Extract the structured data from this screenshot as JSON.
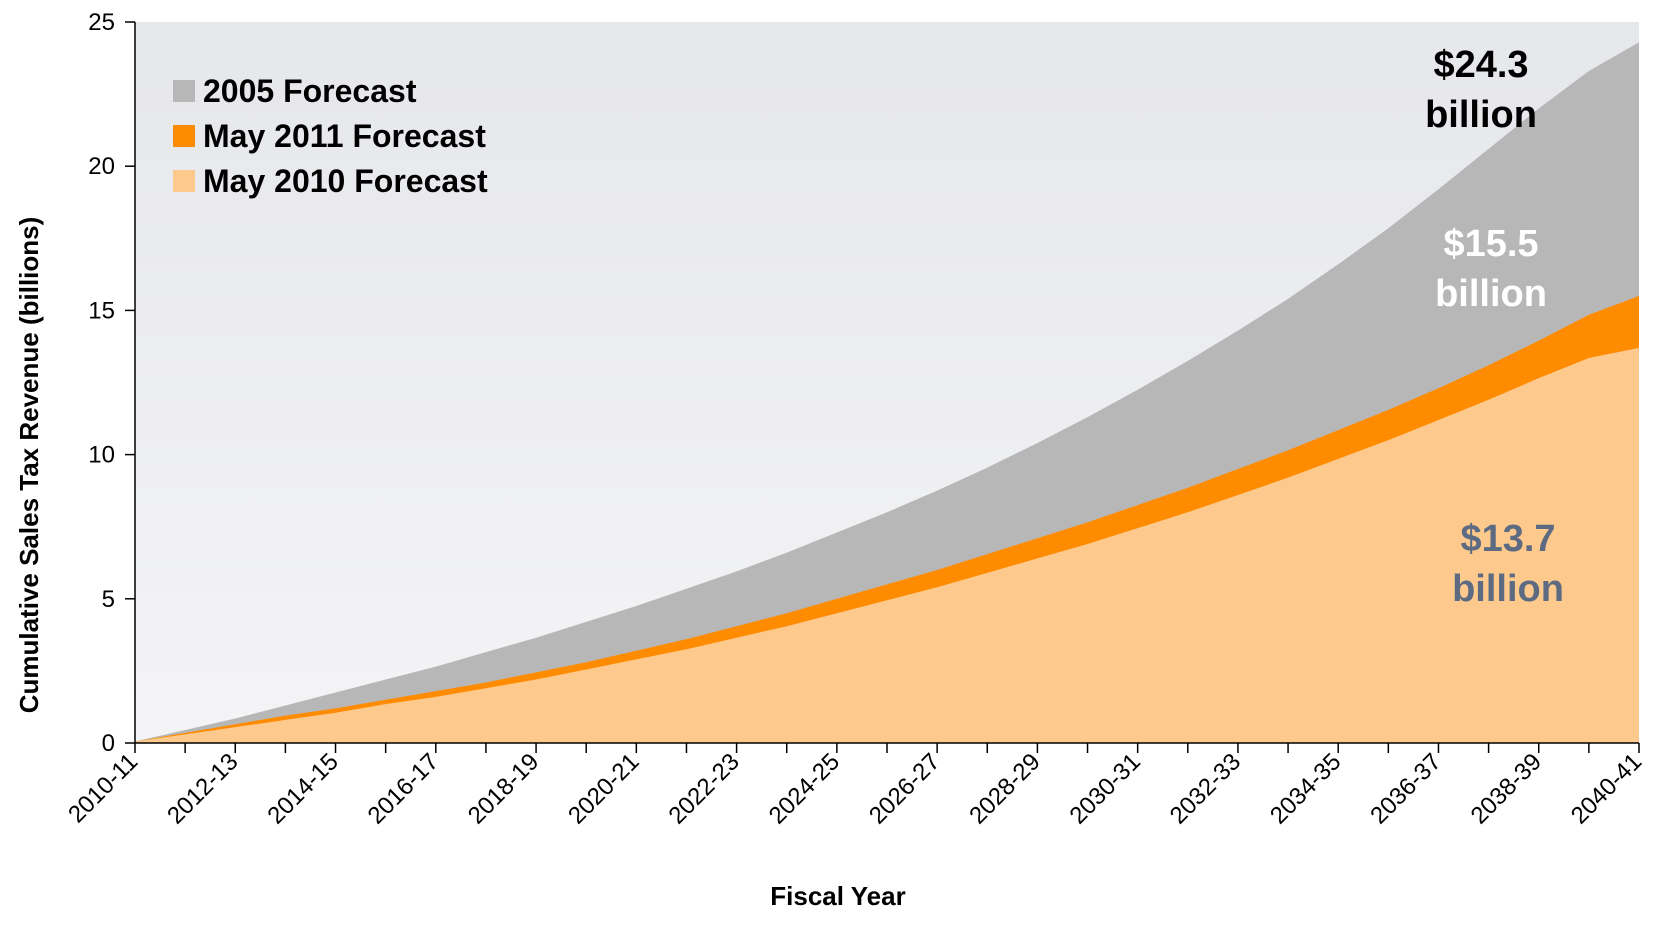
{
  "colors": {
    "bg_top": "#e6e7eb",
    "bg_bottom": "#f4f4f6",
    "forecast_2005": "#b7b7b7",
    "forecast_may2011": "#ff8c00",
    "forecast_may2010": "#fdc98c",
    "annot_dark": "#000000",
    "annot_white": "#ffffff",
    "annot_slate": "#5d6b82"
  },
  "chart_data": {
    "type": "area",
    "title": "",
    "xlabel": "Fiscal Year",
    "ylabel": "Cumulative Sales Tax Revenue  (billions)",
    "ylim": [
      0,
      25
    ],
    "yticks": [
      0,
      5,
      10,
      15,
      20,
      25
    ],
    "grid": false,
    "legend_position": "top-left",
    "x": [
      "2010-11",
      "2011-12",
      "2012-13",
      "2013-14",
      "2014-15",
      "2015-16",
      "2016-17",
      "2017-18",
      "2018-19",
      "2019-20",
      "2020-21",
      "2021-22",
      "2022-23",
      "2023-24",
      "2024-25",
      "2025-26",
      "2026-27",
      "2027-28",
      "2028-29",
      "2029-30",
      "2030-31",
      "2031-32",
      "2032-33",
      "2033-34",
      "2034-35",
      "2035-36",
      "2036-37",
      "2037-38",
      "2038-39",
      "2039-40",
      "2040-41"
    ],
    "x_tick_labels": [
      "2010-11",
      "2012-13",
      "2014-15",
      "2016-17",
      "2018-19",
      "2020-21",
      "2022-23",
      "2024-25",
      "2026-27",
      "2028-29",
      "2030-31",
      "2032-33",
      "2034-35",
      "2036-37",
      "2038-39",
      "2040-41"
    ],
    "series": [
      {
        "name": "2005 Forecast",
        "values": [
          0.05,
          0.45,
          0.85,
          1.3,
          1.75,
          2.2,
          2.65,
          3.15,
          3.65,
          4.2,
          4.75,
          5.35,
          5.95,
          6.6,
          7.3,
          8.0,
          8.75,
          9.55,
          10.4,
          11.3,
          12.25,
          13.25,
          14.3,
          15.4,
          16.6,
          17.85,
          19.2,
          20.6,
          22.0,
          23.3,
          24.3
        ]
      },
      {
        "name": "May 2011 Forecast",
        "values": [
          0.05,
          0.35,
          0.65,
          0.95,
          1.2,
          1.5,
          1.8,
          2.1,
          2.45,
          2.8,
          3.2,
          3.6,
          4.05,
          4.5,
          5.0,
          5.5,
          6.0,
          6.55,
          7.1,
          7.65,
          8.25,
          8.85,
          9.5,
          10.15,
          10.85,
          11.55,
          12.3,
          13.1,
          13.95,
          14.85,
          15.5
        ]
      },
      {
        "name": "May 2010 Forecast",
        "values": [
          0.05,
          0.3,
          0.55,
          0.8,
          1.05,
          1.35,
          1.6,
          1.9,
          2.2,
          2.55,
          2.9,
          3.25,
          3.65,
          4.05,
          4.5,
          4.95,
          5.4,
          5.9,
          6.4,
          6.9,
          7.45,
          8.0,
          8.6,
          9.2,
          9.85,
          10.5,
          11.2,
          11.9,
          12.65,
          13.35,
          13.7
        ]
      }
    ],
    "annotations": [
      {
        "line1": "$24.3",
        "line2": "billion"
      },
      {
        "line1": "$15.5",
        "line2": "billion"
      },
      {
        "line1": "$13.7",
        "line2": "billion"
      }
    ]
  }
}
